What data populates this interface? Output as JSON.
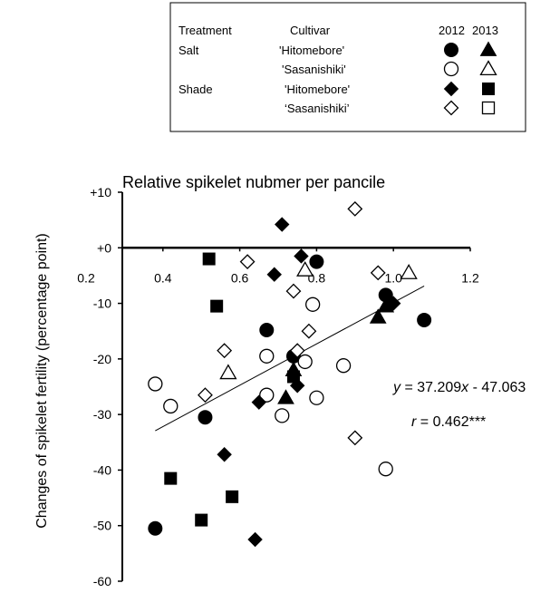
{
  "chart_data": {
    "type": "scatter",
    "title": "Relative spikelet nubmer per pancile",
    "xlabel": "",
    "ylabel": "Changes of spikelet  fertility (percentage point)",
    "xlim": [
      0.2,
      1.2
    ],
    "ylim": [
      -60,
      10
    ],
    "x_ticks": [
      "0.2",
      "0.4",
      "0.6",
      "0.8",
      "1.0",
      "1.2"
    ],
    "y_ticks": [
      "+10",
      "+0",
      "-10",
      "-20",
      "-30",
      "-40",
      "-50",
      "-60"
    ],
    "legend": {
      "placement": "top-right",
      "headers": {
        "treatment": "Treatment",
        "cultivar": "Cultivar",
        "y2012": "2012",
        "y2013": "2013"
      },
      "rows": [
        {
          "treatment": "Salt",
          "cultivar": "'Hitomebore'",
          "marker2012": "filled-circle",
          "marker2013": "filled-triangle"
        },
        {
          "treatment": "",
          "cultivar": "'Sasanishiki'",
          "marker2012": "open-circle",
          "marker2013": "open-triangle"
        },
        {
          "treatment": "Shade",
          "cultivar": "'Hitomebore'",
          "marker2012": "filled-diamond",
          "marker2013": "filled-square"
        },
        {
          "treatment": "",
          "cultivar": "‘Sasanishiki’",
          "marker2012": "open-diamond",
          "marker2013": "open-square"
        }
      ]
    },
    "series": [
      {
        "marker": "filled-circle",
        "points": [
          [
            0.38,
            -50.5
          ],
          [
            0.51,
            -30.5
          ],
          [
            0.67,
            -14.8
          ],
          [
            0.74,
            -19.5
          ],
          [
            0.8,
            -2.5
          ],
          [
            0.98,
            -8.5
          ],
          [
            1.08,
            -13
          ]
        ]
      },
      {
        "marker": "open-circle",
        "points": [
          [
            0.38,
            -24.5
          ],
          [
            0.42,
            -28.5
          ],
          [
            0.67,
            -19.5
          ],
          [
            0.67,
            -26.5
          ],
          [
            0.71,
            -30.2
          ],
          [
            0.77,
            -20.5
          ],
          [
            0.79,
            -10.2
          ],
          [
            0.8,
            -27
          ],
          [
            0.87,
            -21.2
          ],
          [
            0.98,
            -39.8
          ]
        ]
      },
      {
        "marker": "filled-triangle",
        "points": [
          [
            0.72,
            -27
          ],
          [
            0.74,
            -22
          ],
          [
            0.96,
            -12.5
          ],
          [
            0.98,
            -10.5
          ]
        ]
      },
      {
        "marker": "open-triangle",
        "points": [
          [
            0.57,
            -22.5
          ],
          [
            0.77,
            -4
          ],
          [
            1.04,
            -4.5
          ]
        ]
      },
      {
        "marker": "filled-diamond",
        "points": [
          [
            0.56,
            -37.2
          ],
          [
            0.64,
            -52.5
          ],
          [
            0.65,
            -27.8
          ],
          [
            0.69,
            -4.8
          ],
          [
            0.71,
            4.2
          ],
          [
            0.75,
            -24.8
          ],
          [
            0.76,
            -1.5
          ],
          [
            1.0,
            -10
          ]
        ]
      },
      {
        "marker": "filled-square",
        "points": [
          [
            0.42,
            -41.5
          ],
          [
            0.5,
            -49
          ],
          [
            0.52,
            -2
          ],
          [
            0.54,
            -10.5
          ],
          [
            0.58,
            -44.8
          ],
          [
            0.74,
            -23.2
          ]
        ]
      },
      {
        "marker": "open-diamond",
        "points": [
          [
            0.51,
            -26.5
          ],
          [
            0.56,
            -18.5
          ],
          [
            0.62,
            -2.5
          ],
          [
            0.74,
            -7.8
          ],
          [
            0.75,
            -18.5
          ],
          [
            0.78,
            -15
          ],
          [
            0.9,
            7
          ],
          [
            0.9,
            -34.2
          ],
          [
            0.96,
            -4.5
          ]
        ]
      },
      {
        "marker": "open-square",
        "points": []
      }
    ],
    "trendline": {
      "x_range": [
        0.38,
        1.08
      ],
      "slope": 37.209,
      "intercept": -47.063
    },
    "annotations": {
      "equation": {
        "y": "y",
        "eq": " = 37.209",
        "x": "x",
        "rest": " - 47.063"
      },
      "r": {
        "r": "r",
        "value": " = 0.462***"
      }
    }
  }
}
